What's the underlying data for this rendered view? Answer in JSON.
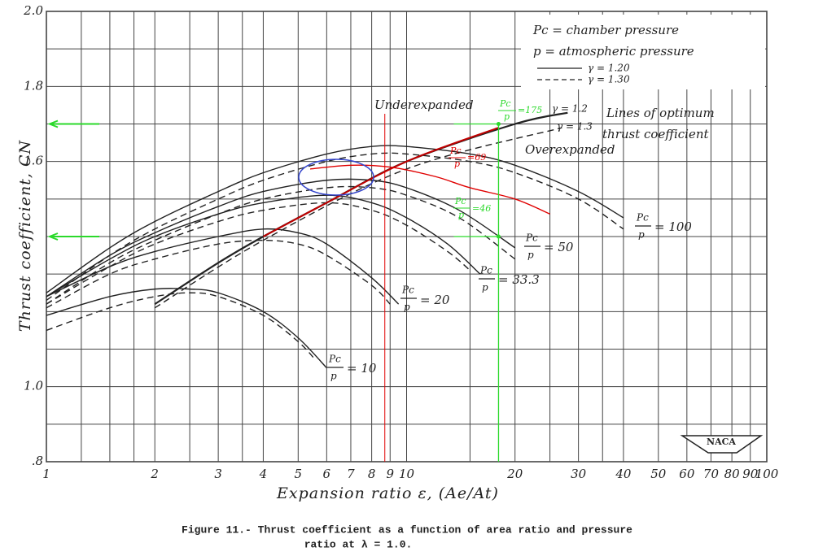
{
  "chart_data": {
    "type": "line",
    "x_label": "Expansion ratio ε, (Ae/At)",
    "y_label": "Thrust coefficient, CN",
    "log_x": true,
    "xlim": [
      1,
      100
    ],
    "xticks": [
      1,
      2,
      3,
      4,
      5,
      6,
      7,
      8,
      9,
      10,
      20,
      30,
      40,
      50,
      60,
      70,
      80,
      90,
      100
    ],
    "xgrid": [
      1.25,
      1.5,
      1.75,
      2.5,
      3.5,
      15,
      25,
      35
    ],
    "ylim": [
      0.8,
      2.0
    ],
    "yticks": [
      {
        "value": 2,
        "label": "2.0"
      },
      1.8,
      1.6,
      {
        "value": 1,
        "label": "1.0"
      },
      {
        "value": 0.8,
        "label": ".8"
      }
    ],
    "ygrid": [
      0.9,
      1.1,
      1.2,
      1.3,
      1.4,
      1.5,
      1.7,
      1.9
    ],
    "grid": true,
    "legend": [
      {
        "label": "γ = 1.20",
        "style": "solid"
      },
      {
        "label": "γ = 1.30",
        "style": "dashed"
      }
    ],
    "notes": [
      "Pc = chamber pressure",
      "p = atmospheric pressure"
    ],
    "series": [
      {
        "color": "#222",
        "style": "solid",
        "x": [
          1,
          1.5,
          2,
          2.5,
          3,
          4,
          5,
          6
        ],
        "values": [
          1.19,
          1.24,
          1.26,
          1.26,
          1.25,
          1.2,
          1.13,
          1.05
        ]
      },
      {
        "color": "#222",
        "style": "dashed",
        "x": [
          1,
          1.5,
          2,
          2.5,
          3,
          4,
          5,
          5.6
        ],
        "values": [
          1.15,
          1.21,
          1.24,
          1.25,
          1.24,
          1.19,
          1.12,
          1.07
        ]
      },
      {
        "color": "#222",
        "style": "solid",
        "x": [
          1,
          1.5,
          2,
          3,
          4,
          5,
          6,
          8,
          9.5
        ],
        "values": [
          1.24,
          1.32,
          1.36,
          1.4,
          1.42,
          1.41,
          1.38,
          1.29,
          1.22
        ]
      },
      {
        "color": "#222",
        "style": "dashed",
        "x": [
          1,
          1.5,
          2,
          3,
          4,
          5,
          6,
          8,
          9
        ],
        "values": [
          1.21,
          1.3,
          1.34,
          1.38,
          1.39,
          1.38,
          1.35,
          1.27,
          1.22
        ]
      },
      {
        "color": "#222",
        "style": "solid",
        "x": [
          1,
          1.5,
          2,
          3,
          4,
          6,
          8,
          10,
          13,
          16
        ],
        "values": [
          1.24,
          1.34,
          1.4,
          1.46,
          1.49,
          1.51,
          1.49,
          1.45,
          1.38,
          1.3
        ]
      },
      {
        "color": "#222",
        "style": "dashed",
        "x": [
          1,
          1.5,
          2,
          3,
          4,
          6,
          8,
          10,
          13,
          15
        ],
        "values": [
          1.22,
          1.32,
          1.38,
          1.44,
          1.47,
          1.49,
          1.47,
          1.43,
          1.36,
          1.31
        ]
      },
      {
        "color": "#222",
        "style": "solid",
        "x": [
          1,
          1.5,
          2,
          3,
          4,
          6,
          8,
          10,
          14,
          20
        ],
        "values": [
          1.24,
          1.35,
          1.41,
          1.48,
          1.52,
          1.55,
          1.55,
          1.53,
          1.47,
          1.37
        ]
      },
      {
        "color": "#222",
        "style": "dashed",
        "x": [
          1,
          1.5,
          2,
          3,
          4,
          6,
          8,
          10,
          14,
          20
        ],
        "values": [
          1.22,
          1.33,
          1.39,
          1.46,
          1.5,
          1.53,
          1.53,
          1.51,
          1.45,
          1.34
        ]
      },
      {
        "color": "#222",
        "style": "solid",
        "x": [
          1,
          1.5,
          2,
          3,
          4,
          6,
          8,
          10,
          15,
          20,
          30,
          40
        ],
        "values": [
          1.25,
          1.37,
          1.44,
          1.52,
          1.57,
          1.62,
          1.64,
          1.64,
          1.62,
          1.59,
          1.52,
          1.45
        ]
      },
      {
        "color": "#222",
        "style": "dashed",
        "x": [
          1,
          1.5,
          2,
          3,
          4,
          6,
          8,
          10,
          15,
          20,
          30,
          40
        ],
        "values": [
          1.23,
          1.35,
          1.42,
          1.5,
          1.55,
          1.6,
          1.62,
          1.62,
          1.6,
          1.57,
          1.5,
          1.42
        ]
      },
      {
        "color": "#222",
        "style": "solid",
        "width": 2.2,
        "x": [
          2,
          3,
          4,
          6,
          10,
          20,
          28
        ],
        "values": [
          1.22,
          1.33,
          1.4,
          1.49,
          1.6,
          1.7,
          1.73
        ]
      },
      {
        "color": "#222",
        "style": "dashed",
        "x": [
          2,
          4,
          10,
          27
        ],
        "values": [
          1.21,
          1.39,
          1.58,
          1.69
        ]
      },
      {
        "color": "#c00000",
        "style": "solid",
        "width": 2,
        "x": [
          4,
          6,
          10,
          18
        ],
        "values": [
          1.4,
          1.49,
          1.6,
          1.69
        ]
      },
      {
        "color": "#e00000",
        "style": "solid",
        "x": [
          5.4,
          7,
          9,
          12,
          15,
          20,
          25
        ],
        "values": [
          1.58,
          1.59,
          1.585,
          1.56,
          1.53,
          1.5,
          1.46
        ]
      }
    ],
    "curve_labels": [
      {
        "num": "Pc",
        "den": "p",
        "text": "= 10"
      },
      {
        "num": "Pc",
        "den": "p",
        "text": "= 20"
      },
      {
        "num": "Pc",
        "den": "p",
        "text": "= 33.3"
      },
      {
        "num": "Pc",
        "den": "p",
        "text": "= 50"
      },
      {
        "num": "Pc",
        "den": "p",
        "text": "= 100"
      }
    ],
    "region_labels": [
      "Underexpanded",
      "Overexpanded"
    ],
    "optimum_note": [
      "Lines of optimum",
      "thrust coefficient"
    ],
    "optimum_gammas": [
      "γ = 1.2",
      "γ = 1.3"
    ],
    "highlight_labels": [
      {
        "num": "Pc",
        "den": "p",
        "text": "=175"
      },
      {
        "num": "Pc",
        "den": "p",
        "text": "=69"
      },
      {
        "num": "Pc",
        "den": "p",
        "text": "=46"
      }
    ],
    "green_y": [
      1.7,
      1.4
    ],
    "green_x": 18,
    "red_x": 8.7,
    "logo": "NACA",
    "caption": [
      "Figure 11.- Thrust coefficient as a function of area ratio and pressure",
      "ratio at  λ = 1.0."
    ]
  }
}
